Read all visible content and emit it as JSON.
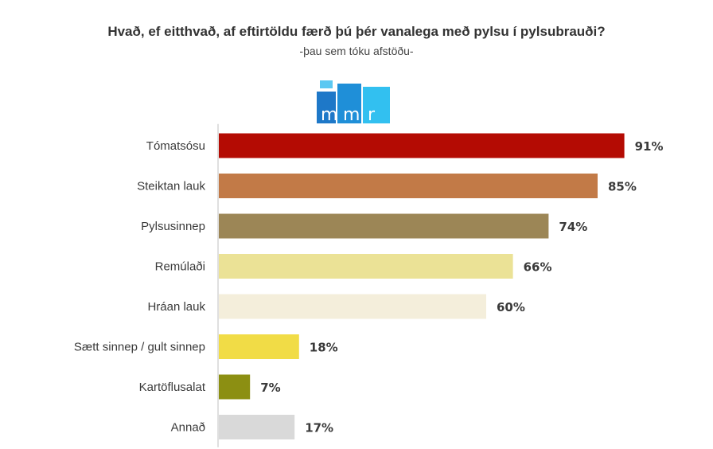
{
  "chart_data": {
    "type": "bar",
    "orientation": "horizontal",
    "title": "Hvað, ef eitthvað, af eftirtöldu færð þú þér vanalega með pylsu í pylsubrauði?",
    "subtitle": "-þau sem tóku afstöðu-",
    "categories": [
      "Tómatsósu",
      "Steiktan lauk",
      "Pylsusinnep",
      "Remúlaði",
      "Hráan lauk",
      "Sætt sinnep / gult sinnep",
      "Kartöflusalat",
      "Annað"
    ],
    "values": [
      91,
      85,
      74,
      66,
      60,
      18,
      7,
      17
    ],
    "value_labels": [
      "91%",
      "85%",
      "74%",
      "66%",
      "60%",
      "18%",
      "7%",
      "17%"
    ],
    "bar_colors": [
      "#b40b03",
      "#c27a47",
      "#9c8656",
      "#ebe296",
      "#f4eedb",
      "#f1dc46",
      "#8c8f12",
      "#d9d9d9"
    ],
    "xlim": [
      0,
      100
    ],
    "grid": false,
    "legend": "none"
  },
  "logo": {
    "text": "mmr",
    "colors": [
      "#1e78c8",
      "#2ba8e8",
      "#32c0f0"
    ]
  }
}
